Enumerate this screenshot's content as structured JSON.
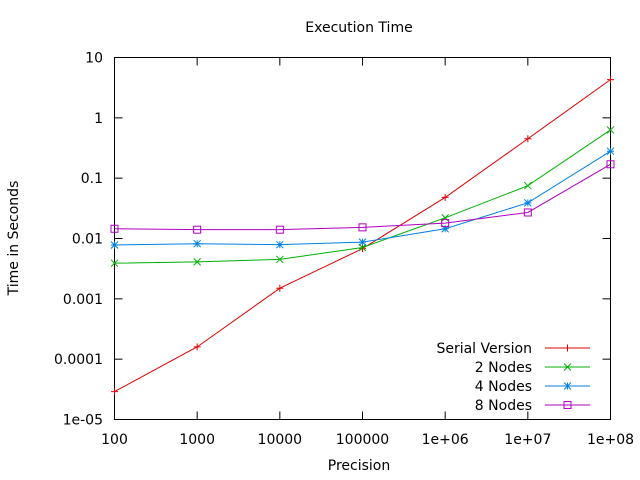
{
  "chart_data": {
    "type": "line",
    "title": "Execution Time",
    "xlabel": "Precision",
    "ylabel": "Time in Seconds",
    "x_scale": "log",
    "y_scale": "log",
    "xlim": [
      100,
      100000000
    ],
    "ylim": [
      1e-05,
      10
    ],
    "x_ticks": [
      100,
      1000,
      10000,
      100000,
      1000000,
      10000000,
      100000000
    ],
    "x_tick_labels": [
      "100",
      "1000",
      "10000",
      "100000",
      "1e+06",
      "1e+07",
      "1e+08"
    ],
    "y_ticks": [
      1e-05,
      0.0001,
      0.001,
      0.01,
      0.1,
      1,
      10
    ],
    "y_tick_labels": [
      "1e-05",
      "0.0001",
      "0.001",
      "0.01",
      "0.1",
      "1",
      "10"
    ],
    "grid": false,
    "legend_position": "bottom-right",
    "x": [
      100,
      1000,
      10000,
      100000,
      1000000,
      10000000,
      100000000
    ],
    "series": [
      {
        "name": "Serial Version",
        "color": "#e00000",
        "marker": "plus",
        "values": [
          2.9e-05,
          0.00016,
          0.0015,
          0.0068,
          0.048,
          0.45,
          4.3
        ]
      },
      {
        "name": "2 Nodes",
        "color": "#00b000",
        "marker": "cross",
        "values": [
          0.0039,
          0.0041,
          0.0045,
          0.0071,
          0.022,
          0.075,
          0.63
        ]
      },
      {
        "name": "4 Nodes",
        "color": "#0080e0",
        "marker": "star",
        "values": [
          0.0078,
          0.0082,
          0.0079,
          0.0087,
          0.0145,
          0.039,
          0.28
        ]
      },
      {
        "name": "8 Nodes",
        "color": "#b000c0",
        "marker": "square",
        "values": [
          0.0145,
          0.014,
          0.014,
          0.0153,
          0.018,
          0.027,
          0.17
        ]
      }
    ]
  }
}
